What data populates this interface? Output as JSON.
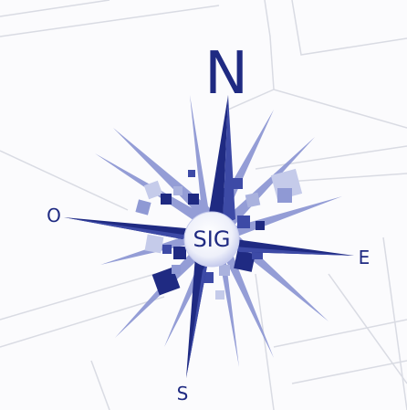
{
  "compass": {
    "north_label": "N",
    "south_label": "S",
    "east_label": "E",
    "west_label": "O",
    "center_label": "SIG"
  },
  "colors": {
    "background": "#fbfbfd",
    "map_lines": "#d9dbe3",
    "rose_dark": "#1f2a82",
    "rose_mid": "#3d4aa6",
    "rose_light": "#aab2de"
  }
}
